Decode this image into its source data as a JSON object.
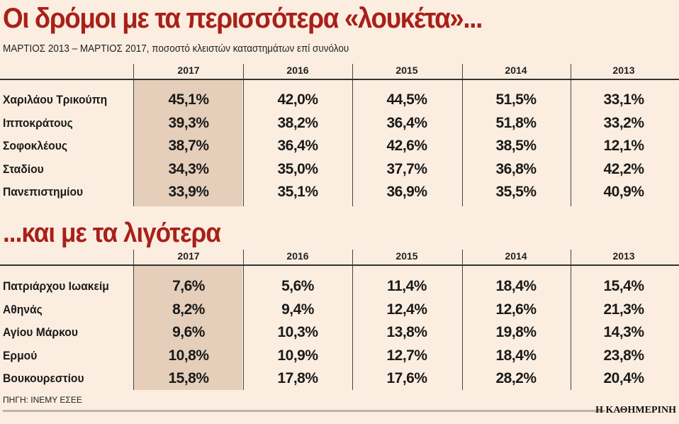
{
  "title": "Οι δρόμοι με τα περισσότερα «λουκέτα»...",
  "subtitle": "ΜΑΡΤΙΟΣ 2013 – ΜΑΡΤΙΟΣ 2017, ποσοστό κλειστών καταστημάτων επί συνόλου",
  "years": [
    "2017",
    "2016",
    "2015",
    "2014",
    "2013"
  ],
  "most": [
    {
      "street": "Χαριλάου Τρικούπη",
      "values": [
        "45,1%",
        "42,0%",
        "44,5%",
        "51,5%",
        "33,1%"
      ]
    },
    {
      "street": "Ιπποκράτους",
      "values": [
        "39,3%",
        "38,2%",
        "36,4%",
        "51,8%",
        "33,2%"
      ]
    },
    {
      "street": "Σοφοκλέους",
      "values": [
        "38,7%",
        "36,4%",
        "42,6%",
        "38,5%",
        "12,1%"
      ]
    },
    {
      "street": "Σταδίου",
      "values": [
        "34,3%",
        "35,0%",
        "37,7%",
        "36,8%",
        "42,2%"
      ]
    },
    {
      "street": "Πανεπιστημίου",
      "values": [
        "33,9%",
        "35,1%",
        "36,9%",
        "35,5%",
        "40,9%"
      ]
    }
  ],
  "title2": "...και με τα λιγότερα",
  "least": [
    {
      "street": "Πατριάρχου Ιωακείμ",
      "values": [
        "7,6%",
        "5,6%",
        "11,4%",
        "18,4%",
        "15,4%"
      ]
    },
    {
      "street": "Αθηνάς",
      "values": [
        "8,2%",
        "9,4%",
        "12,4%",
        "12,6%",
        "21,3%"
      ]
    },
    {
      "street": "Αγίου Μάρκου",
      "values": [
        "9,6%",
        "10,3%",
        "13,8%",
        "19,8%",
        "14,3%"
      ]
    },
    {
      "street": "Ερμού",
      "values": [
        "10,8%",
        "10,9%",
        "12,7%",
        "18,4%",
        "23,8%"
      ]
    },
    {
      "street": "Βουκουρεστίου",
      "values": [
        "15,8%",
        "17,8%",
        "17,6%",
        "28,2%",
        "20,4%"
      ]
    }
  ],
  "source": "ΠΗΓΗ: ΙΝΕΜΥ ΕΣΕΕ",
  "brand": "Η ΚΑΘΗΜΕΡΙΝΗ",
  "colors": {
    "title": "#a8201a",
    "background": "#fbeee0",
    "highlight": "#e5cfba"
  }
}
